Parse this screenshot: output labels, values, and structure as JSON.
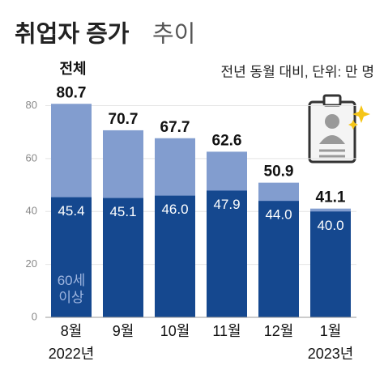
{
  "chart_data": {
    "type": "bar",
    "title": "취업자 증가",
    "title_suffix": "추이",
    "subtitle": "전년 동월 대비, 단위: 만 명",
    "categories": [
      "8월",
      "9월",
      "10월",
      "11월",
      "12월",
      "1월"
    ],
    "years": [
      "2022년",
      "2023년"
    ],
    "total": {
      "name": "전체",
      "color": "#829dcf",
      "values": [
        80.7,
        70.7,
        67.7,
        62.6,
        50.9,
        41.1
      ]
    },
    "series": [
      {
        "name": "60세 이상",
        "color": "#15488f",
        "values": [
          45.4,
          45.1,
          46,
          47.9,
          44,
          40
        ],
        "value_labels": [
          "45.4",
          "45.1",
          "46.0",
          "47.9",
          "44.0",
          "40.0"
        ]
      }
    ],
    "ylim": [
      0,
      82
    ],
    "yticks": [
      0,
      20,
      40,
      60,
      80
    ],
    "grid": true
  }
}
